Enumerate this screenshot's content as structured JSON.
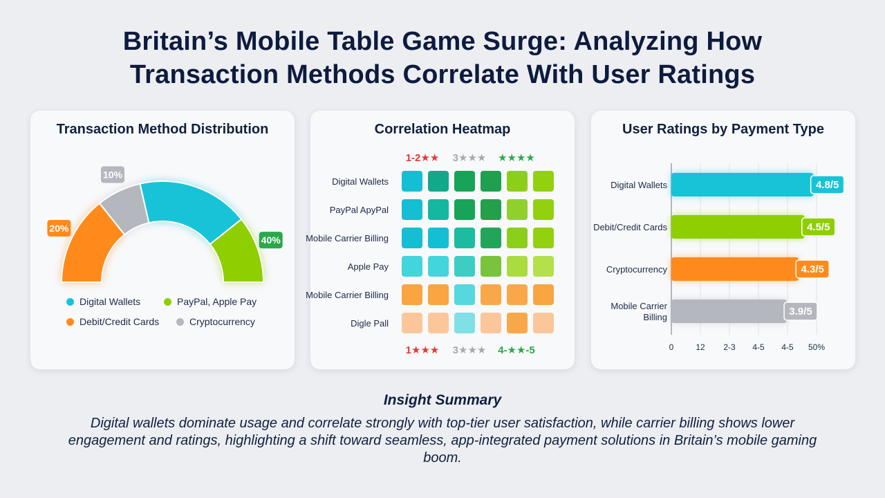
{
  "page": {
    "title_line1": "Britain’s Mobile Table Game Surge: Analyzing How",
    "title_line2": "Transaction Methods Correlate With User Ratings"
  },
  "colors": {
    "cyan": "#18c3d8",
    "green": "#8fce00",
    "orange": "#ff8a1c",
    "gray": "#b4b7bd",
    "green_badge": "#2aa84a",
    "red_star": "#e53935"
  },
  "insight": {
    "heading": "Insight Summary",
    "body": "Digital wallets dominate usage and correlate strongly with top-tier user satisfaction, while carrier billing shows lower engagement and ratings, highlighting a shift toward seamless, app-integrated payment solutions in Britain’s mobile gaming boom."
  },
  "chart_data": [
    {
      "type": "pie",
      "variant": "semicircle-donut",
      "title": "Transaction Method Distribution",
      "slices": [
        {
          "name": "Debit/Credit Cards",
          "value": 20,
          "label": "20%",
          "color": "#ff8a1c"
        },
        {
          "name": "Cryptocurrency",
          "value": 10,
          "label": "10%",
          "color": "#b4b7bd"
        },
        {
          "name": "Digital Wallets",
          "value": 25,
          "label": "",
          "color": "#18c3d8"
        },
        {
          "name": "PayPal, Apple Pay",
          "value": 15,
          "label": "40%",
          "color": "#8fce00"
        }
      ],
      "legend": [
        {
          "name": "Digital Wallets",
          "color": "#18c3d8"
        },
        {
          "name": "PayPal, Apple Pay",
          "color": "#8fce00"
        },
        {
          "name": "Debit/Credit Cards",
          "color": "#ff8a1c"
        },
        {
          "name": "Cryptocurrency",
          "color": "#b4b7bd"
        }
      ],
      "legend_placement": "bottom"
    },
    {
      "type": "heatmap",
      "title": "Correlation Heatmap",
      "rows": [
        "Digital Wallets",
        "PayPal ApyPal",
        "Mobile Carrier Billing",
        "Apple Pay",
        "Mobile Carrier Billing",
        "Digle Pall"
      ],
      "top_labels": [
        {
          "text": "1-2",
          "stars": "★★",
          "color": "#e53935"
        },
        {
          "text": "3",
          "stars": "★★★",
          "color": "#a6a9ae"
        },
        {
          "text": "",
          "stars": "★★★★",
          "color": "#2aa84a"
        }
      ],
      "bottom_labels": [
        {
          "text": "1",
          "stars": "★★★",
          "color": "#e53935"
        },
        {
          "text": "3",
          "stars": "★★★",
          "color": "#a6a9ae"
        },
        {
          "text": "4-",
          "stars": "★★",
          "suffix": "-5",
          "color": "#2aa84a"
        }
      ],
      "cells": [
        [
          "#15bfd3",
          "#13a88a",
          "#17a459",
          "#1fa04e",
          "#8ccf1a",
          "#93d10f"
        ],
        [
          "#15bfd3",
          "#14b7a0",
          "#17a459",
          "#23a04a",
          "#91d02a",
          "#93d10f"
        ],
        [
          "#15bfd3",
          "#15bfd3",
          "#1cbca0",
          "#22a55a",
          "#8ccf1a",
          "#93d10f"
        ],
        [
          "#43d5dc",
          "#43d5dc",
          "#3ecdc2",
          "#78c43c",
          "#aadb3f",
          "#b4e04c"
        ],
        [
          "#f8a542",
          "#f8a542",
          "#56d8de",
          "#f9a849",
          "#f9a849",
          "#f8a542"
        ],
        [
          "#fbc79a",
          "#fbc79a",
          "#7fe0e5",
          "#fbc79a",
          "#f9a849",
          "#fbc79a"
        ]
      ]
    },
    {
      "type": "bar",
      "orientation": "horizontal",
      "title": "User Ratings by Payment Type",
      "categories": [
        "Digital Wallets",
        "Debit/Credit Cards",
        "Cryptocurrency",
        "Mobile Carrier Billing"
      ],
      "category_lines": [
        [
          "Digital Wallets"
        ],
        [
          "Debit/Credit Cards"
        ],
        [
          "Cryptocurrency"
        ],
        [
          "Mobile Carrier",
          "Billing"
        ]
      ],
      "values": [
        4.8,
        4.5,
        4.3,
        3.9
      ],
      "value_labels": [
        "4.8/5",
        "4.5/5",
        "4.3/5",
        "3.9/5"
      ],
      "colors": [
        "#18c3d8",
        "#8fce00",
        "#ff8a1c",
        "#b4b7bd"
      ],
      "x_tick_labels": [
        "0",
        "12",
        "2-3",
        "4-5",
        "4-5",
        "50%"
      ],
      "xlim": [
        0,
        5
      ],
      "grid": true
    }
  ]
}
